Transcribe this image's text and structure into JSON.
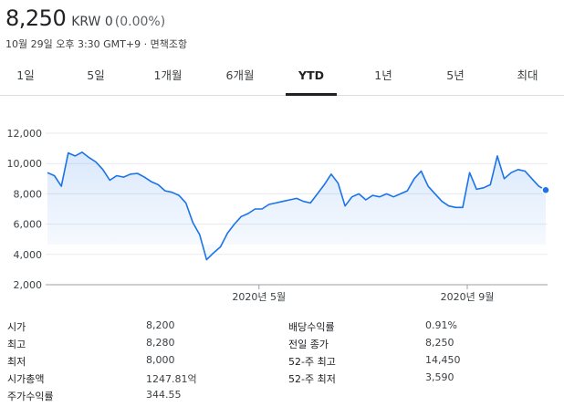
{
  "header": {
    "price": "8,250",
    "currency_change": "KRW 0",
    "change_percent": "(0.00%)",
    "timestamp": "10월 29일 오후 3:30 GMT+9 · 면책조항"
  },
  "tabs": [
    {
      "label": "1일"
    },
    {
      "label": "5일"
    },
    {
      "label": "1개월"
    },
    {
      "label": "6개월"
    },
    {
      "label": "YTD",
      "active": true
    },
    {
      "label": "1년"
    },
    {
      "label": "5년"
    },
    {
      "label": "최대"
    }
  ],
  "colors": {
    "line": "#1a73e8",
    "fill": "#e8f0fe",
    "grid": "#e8eaed",
    "text": "#202124"
  },
  "chart_data": {
    "type": "area",
    "xlabel": "",
    "ylabel": "",
    "ylim": [
      2000,
      12000
    ],
    "y_ticks": [
      "12,000",
      "10,000",
      "8,000",
      "6,000",
      "4,000",
      "2,000"
    ],
    "x_ticks": [
      "2020년 5월",
      "2020년 9월"
    ],
    "grid": true,
    "values": [
      9400,
      9200,
      8500,
      10700,
      10500,
      10750,
      10400,
      10100,
      9600,
      8900,
      9200,
      9100,
      9300,
      9350,
      9100,
      8800,
      8600,
      8200,
      8100,
      7900,
      7400,
      6100,
      5300,
      3650,
      4100,
      4500,
      5400,
      6000,
      6500,
      6700,
      7000,
      7000,
      7300,
      7400,
      7500,
      7600,
      7700,
      7500,
      7400,
      8000,
      8600,
      9300,
      8700,
      7200,
      7800,
      8000,
      7600,
      7900,
      7800,
      8000,
      7800,
      8000,
      8200,
      9000,
      9500,
      8500,
      8000,
      7500,
      7200,
      7100,
      7100,
      9400,
      8300,
      8400,
      8600,
      10500,
      9000,
      9400,
      9600,
      9500,
      9000,
      8500,
      8250
    ],
    "last_value": 8250
  },
  "stats": [
    {
      "label": "시가",
      "value": "8,200",
      "label2": "배당수익률",
      "value2": "0.91%"
    },
    {
      "label": "최고",
      "value": "8,280",
      "label2": "전일 종가",
      "value2": "8,250"
    },
    {
      "label": "최저",
      "value": "8,000",
      "label2": "52-주 최고",
      "value2": "14,450"
    },
    {
      "label": "시가총액",
      "value": "1247.81억",
      "label2": "52-주 최저",
      "value2": "3,590"
    },
    {
      "label": "주가수익률",
      "value": "344.55",
      "label2": "",
      "value2": ""
    }
  ]
}
